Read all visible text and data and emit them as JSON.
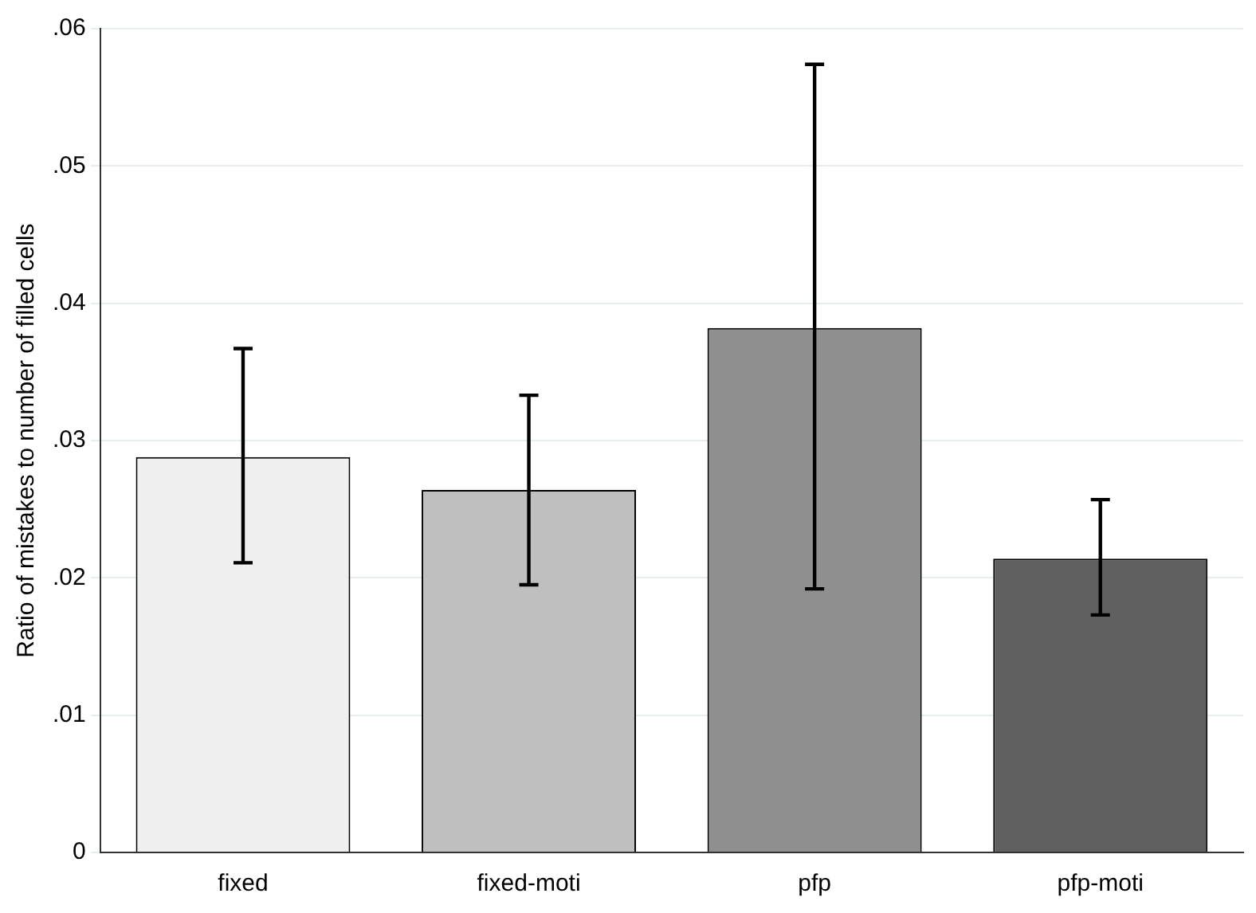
{
  "chart_data": {
    "type": "bar",
    "ylabel": "Ratio of mistakes to number of filled cells",
    "categories": [
      "fixed",
      "fixed-moti",
      "pfp",
      "pfp-moti"
    ],
    "values": [
      0.0288,
      0.0264,
      0.0382,
      0.0214
    ],
    "colors": [
      "#efefef",
      "#bfbfbf",
      "#8f8f8f",
      "#606060"
    ],
    "errors": [
      [
        0.0211,
        0.0367
      ],
      [
        0.0195,
        0.0333
      ],
      [
        0.0192,
        0.0574
      ],
      [
        0.0173,
        0.0257
      ]
    ],
    "ylim": [
      0,
      0.06
    ],
    "yticks": [
      0,
      {
        "value": 0.01,
        "label": ".01"
      },
      {
        "value": 0.02,
        "label": ".02"
      },
      {
        "value": 0.03,
        "label": ".03"
      },
      {
        "value": 0.04,
        "label": ".04"
      },
      {
        "value": 0.05,
        "label": ".05"
      },
      {
        "value": 0.06,
        "label": ".06"
      }
    ],
    "grid": "y",
    "legend": false
  }
}
